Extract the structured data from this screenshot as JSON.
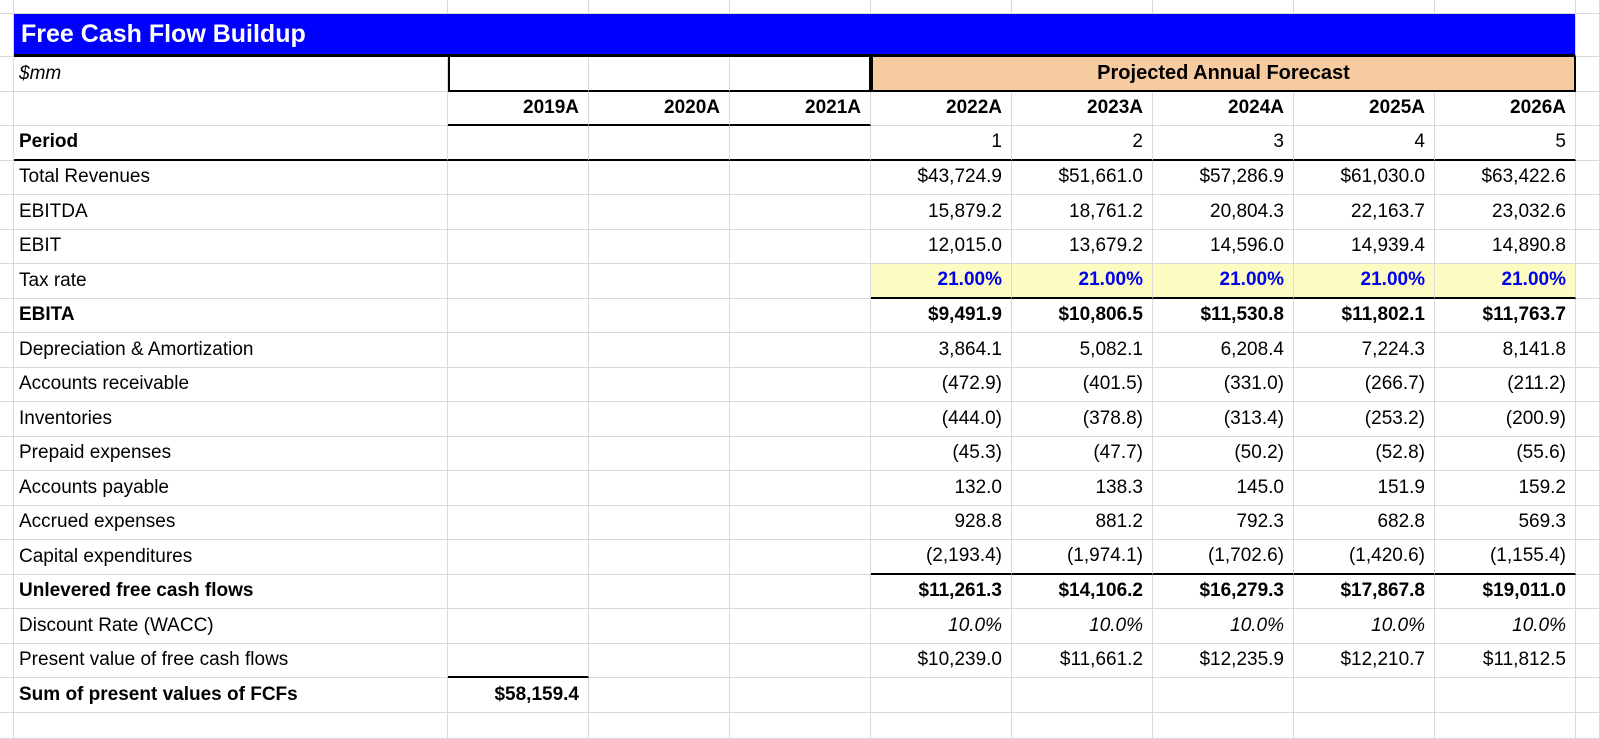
{
  "title": "Free Cash Flow Buildup",
  "units": "$mm",
  "banner": "Projected Annual Forecast",
  "columns": [
    "2019A",
    "2020A",
    "2021A",
    "2022A",
    "2023A",
    "2024A",
    "2025A",
    "2026A"
  ],
  "rows": [
    {
      "label": "Period",
      "label_bold": true,
      "rule": "full",
      "values": [
        "",
        "",
        "",
        "1",
        "2",
        "3",
        "4",
        "5"
      ]
    },
    {
      "label": "Total Revenues",
      "values": [
        "",
        "",
        "",
        "$43,724.9",
        "$51,661.0",
        "$57,286.9",
        "$61,030.0",
        "$63,422.6"
      ]
    },
    {
      "label": "EBITDA",
      "values": [
        "",
        "",
        "",
        "15,879.2",
        "18,761.2",
        "20,804.3",
        "22,163.7",
        "23,032.6"
      ]
    },
    {
      "label": "EBIT",
      "values": [
        "",
        "",
        "",
        "12,015.0",
        "13,679.2",
        "14,596.0",
        "14,939.4",
        "14,890.8"
      ]
    },
    {
      "label": "Tax rate",
      "highlight": true,
      "rule": "data",
      "values": [
        "",
        "",
        "",
        "21.00%",
        "21.00%",
        "21.00%",
        "21.00%",
        "21.00%"
      ]
    },
    {
      "label": "EBITA",
      "label_bold": true,
      "values_bold": true,
      "values": [
        "",
        "",
        "",
        "$9,491.9",
        "$10,806.5",
        "$11,530.8",
        "$11,802.1",
        "$11,763.7"
      ]
    },
    {
      "label": "Depreciation & Amortization",
      "values": [
        "",
        "",
        "",
        "3,864.1",
        "5,082.1",
        "6,208.4",
        "7,224.3",
        "8,141.8"
      ]
    },
    {
      "label": "Accounts receivable",
      "values": [
        "",
        "",
        "",
        "(472.9)",
        "(401.5)",
        "(331.0)",
        "(266.7)",
        "(211.2)"
      ]
    },
    {
      "label": "Inventories",
      "values": [
        "",
        "",
        "",
        "(444.0)",
        "(378.8)",
        "(313.4)",
        "(253.2)",
        "(200.9)"
      ]
    },
    {
      "label": "Prepaid expenses",
      "values": [
        "",
        "",
        "",
        "(45.3)",
        "(47.7)",
        "(50.2)",
        "(52.8)",
        "(55.6)"
      ]
    },
    {
      "label": "Accounts payable",
      "values": [
        "",
        "",
        "",
        "132.0",
        "138.3",
        "145.0",
        "151.9",
        "159.2"
      ]
    },
    {
      "label": "Accrued expenses",
      "values": [
        "",
        "",
        "",
        "928.8",
        "881.2",
        "792.3",
        "682.8",
        "569.3"
      ]
    },
    {
      "label": "Capital expenditures",
      "rule": "data",
      "values": [
        "",
        "",
        "",
        "(2,193.4)",
        "(1,974.1)",
        "(1,702.6)",
        "(1,420.6)",
        "(1,155.4)"
      ]
    },
    {
      "label": "Unlevered free cash flows",
      "label_bold": true,
      "values_bold": true,
      "values": [
        "",
        "",
        "",
        "$11,261.3",
        "$14,106.2",
        "$16,279.3",
        "$17,867.8",
        "$19,011.0"
      ]
    },
    {
      "label": "Discount Rate (WACC)",
      "values_italic": true,
      "values": [
        "",
        "",
        "",
        "10.0%",
        "10.0%",
        "10.0%",
        "10.0%",
        "10.0%"
      ]
    },
    {
      "label": "Present value of free cash flows",
      "rule": "first",
      "values": [
        "",
        "",
        "",
        "$10,239.0",
        "$11,661.2",
        "$12,235.9",
        "$12,210.7",
        "$11,812.5"
      ]
    },
    {
      "label": "Sum of present values of FCFs",
      "label_bold": true,
      "values_bold": true,
      "values": [
        "$58,159.4",
        "",
        "",
        "",
        "",
        "",
        "",
        ""
      ]
    }
  ],
  "colors": {
    "title_bar": "#0000FE",
    "banner_bg": "#F7CBA0",
    "input_bg": "#FCFCC2",
    "input_text": "#0000EE",
    "gridline": "#D9D9D9"
  }
}
